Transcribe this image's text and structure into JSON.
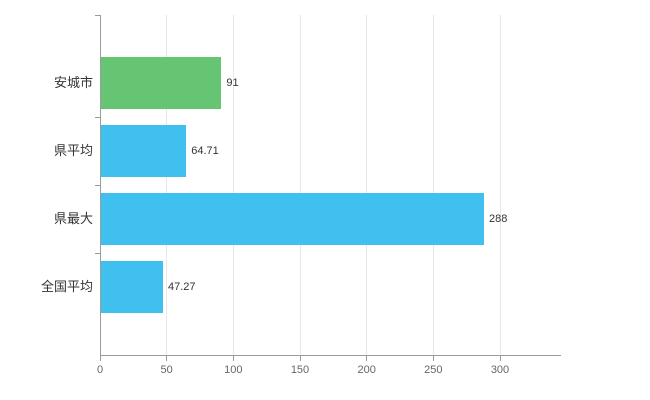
{
  "chart": {
    "background": "#ffffff",
    "axis_color": "#9b9b9b",
    "grid_color": "#e7e7e7",
    "tick_label_color": "#666666",
    "category_label_color": "#333333",
    "value_label_color": "#333333"
  },
  "chart_data": {
    "type": "bar",
    "orientation": "horizontal",
    "title": "",
    "categories": [
      "安城市",
      "県平均",
      "県最大",
      "全国平均"
    ],
    "values": [
      91,
      64.71,
      288,
      47.27
    ],
    "value_labels": [
      "91",
      "64.71",
      "288",
      "47.27"
    ],
    "bar_colors": [
      "#66c573",
      "#3fc0ee",
      "#3fc0ee",
      "#3fc0ee"
    ],
    "xlim": [
      0,
      345
    ],
    "xticks": [
      0,
      50,
      100,
      150,
      200,
      250,
      300
    ],
    "xtick_labels": [
      "0",
      "50",
      "100",
      "150",
      "200",
      "250",
      "300"
    ],
    "grid": true,
    "legend": "none"
  }
}
